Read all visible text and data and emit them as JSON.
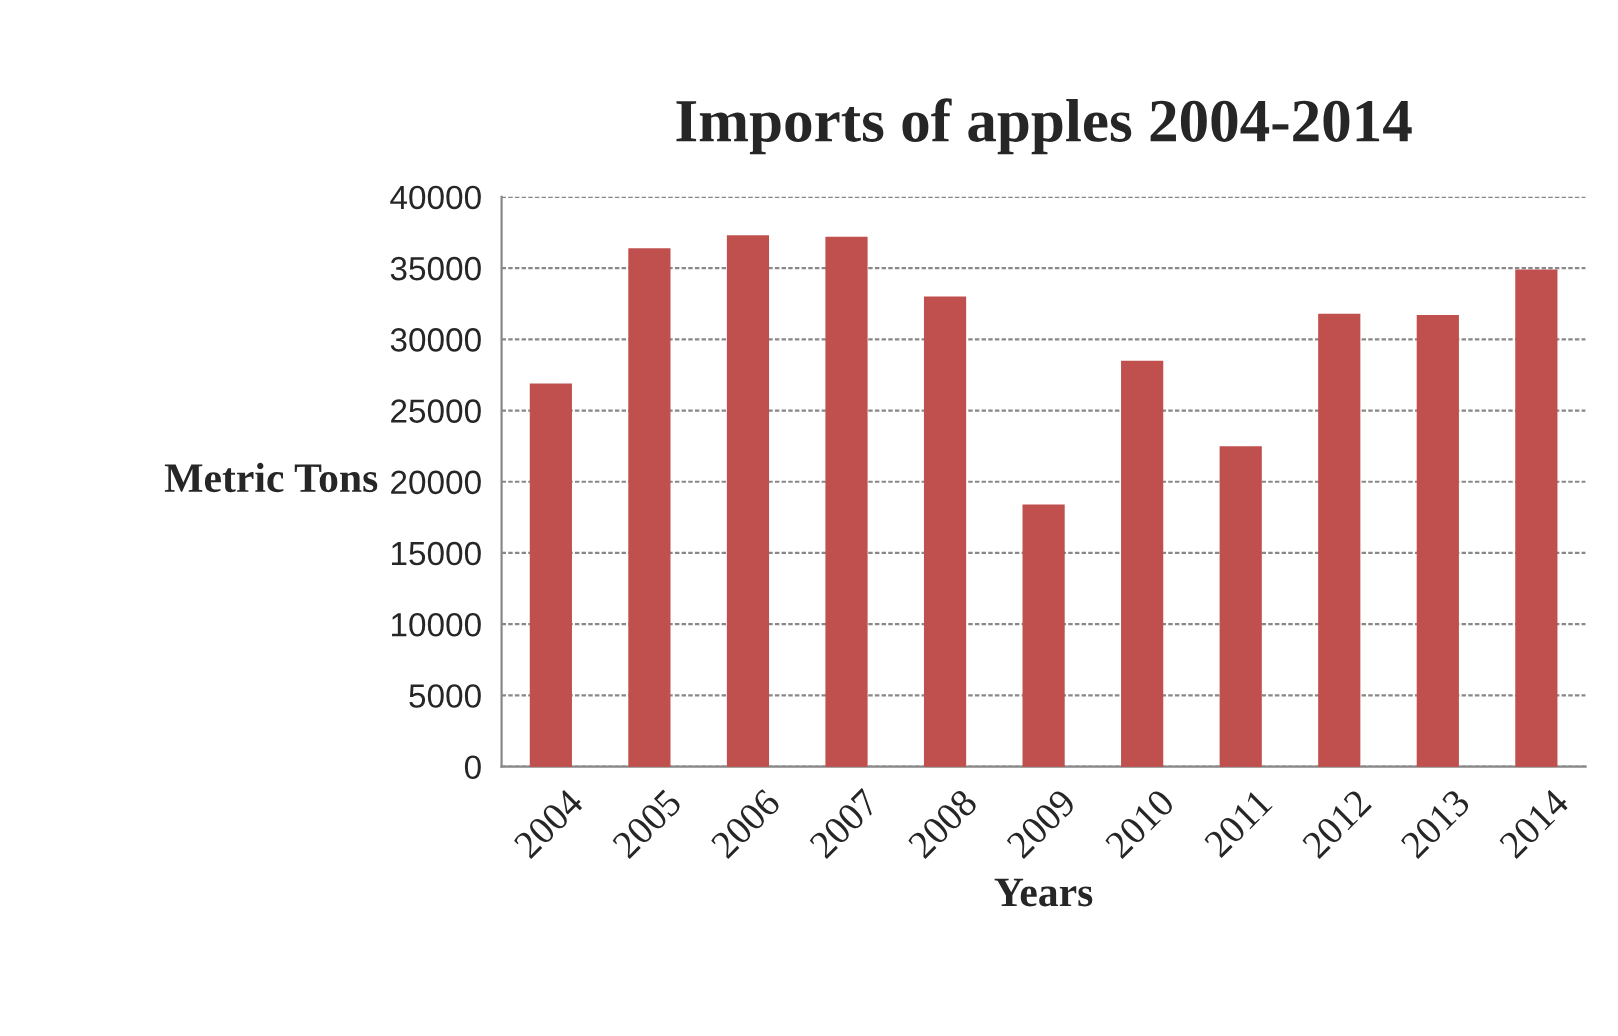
{
  "chart_data": {
    "type": "bar",
    "title": "Imports of apples 2004-2014",
    "xlabel": "Years",
    "ylabel": "Metric Tons",
    "categories": [
      "2004",
      "2005",
      "2006",
      "2007",
      "2008",
      "2009",
      "2010",
      "2011",
      "2012",
      "2013",
      "2014"
    ],
    "values": [
      26800,
      36300,
      37200,
      37100,
      32900,
      18300,
      28400,
      22400,
      31700,
      31600,
      34800
    ],
    "color": "#c0504d",
    "ylim": [
      0,
      40000
    ],
    "yticks": [
      0,
      5000,
      10000,
      15000,
      20000,
      25000,
      30000,
      35000,
      40000
    ],
    "grid": "y"
  }
}
